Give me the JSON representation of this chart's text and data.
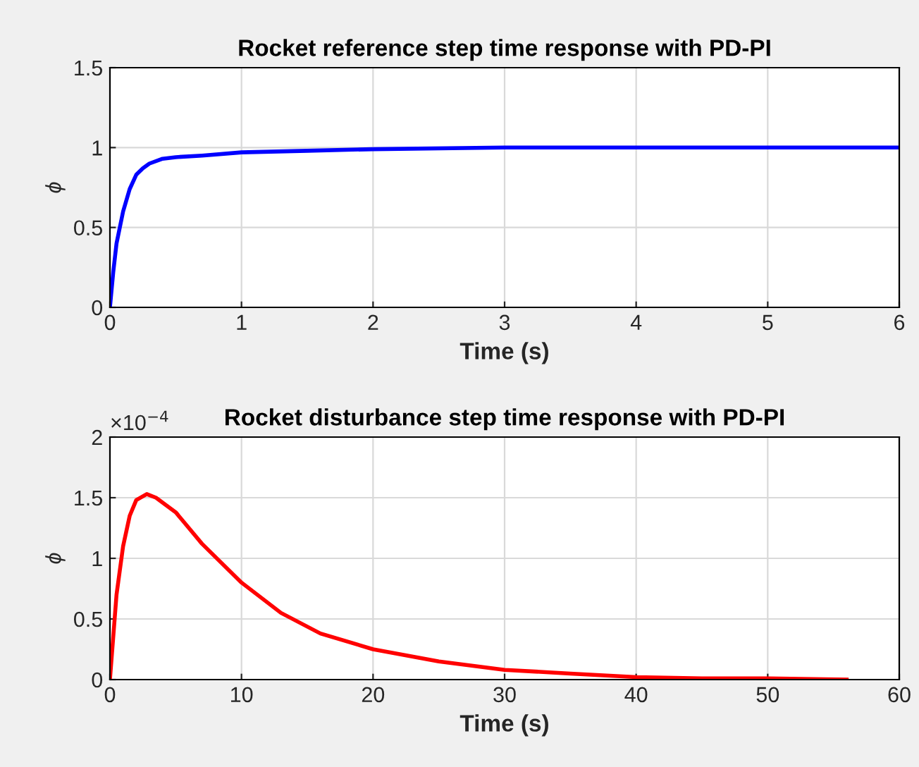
{
  "chart_data": [
    {
      "type": "line",
      "title": "Rocket reference step time response with PD-PI",
      "xlabel": "Time (s)",
      "ylabel": "ϕ",
      "grid": true,
      "xlim": [
        0,
        6
      ],
      "xticks": [
        0,
        1,
        2,
        3,
        4,
        5,
        6
      ],
      "ylim": [
        0,
        1.5
      ],
      "yticks": [
        0,
        0.5,
        1,
        1.5
      ],
      "series": [
        {
          "color": "#0000ff",
          "x": [
            0,
            0.025,
            0.05,
            0.1,
            0.15,
            0.2,
            0.25,
            0.3,
            0.4,
            0.5,
            0.7,
            1,
            1.5,
            2,
            3,
            4,
            5,
            6
          ],
          "values": [
            0,
            0.22,
            0.4,
            0.6,
            0.74,
            0.83,
            0.87,
            0.9,
            0.93,
            0.94,
            0.95,
            0.97,
            0.98,
            0.99,
            1.0,
            1.0,
            1.0,
            1.0
          ]
        }
      ]
    },
    {
      "type": "line",
      "title": "Rocket disturbance step time response with PD-PI",
      "xlabel": "Time (s)",
      "ylabel": "ϕ",
      "grid": true,
      "xlim": [
        0,
        60
      ],
      "xticks": [
        0,
        10,
        20,
        30,
        40,
        50,
        60
      ],
      "ylim": [
        0,
        2
      ],
      "yticks": [
        0,
        0.5,
        1,
        1.5,
        2
      ],
      "annotations": [
        "×10$^{−4}$"
      ],
      "series": [
        {
          "color": "#ff0000",
          "x": [
            0,
            0.5,
            1,
            1.5,
            2,
            2.8,
            3.5,
            5,
            7,
            10,
            13,
            16,
            20,
            25,
            30,
            35,
            40,
            45,
            50,
            56
          ],
          "values": [
            0,
            0.7,
            1.1,
            1.35,
            1.48,
            1.53,
            1.5,
            1.38,
            1.12,
            0.8,
            0.55,
            0.38,
            0.25,
            0.15,
            0.08,
            0.05,
            0.02,
            0.01,
            0.01,
            0
          ]
        }
      ]
    }
  ]
}
